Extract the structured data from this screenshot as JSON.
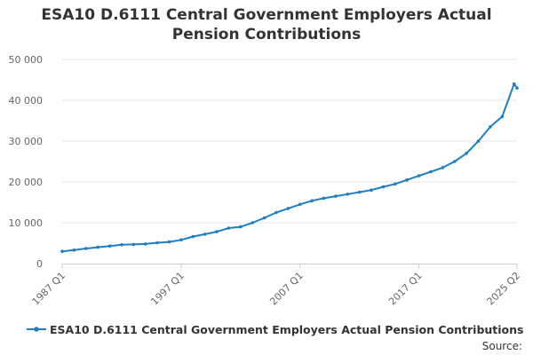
{
  "chart_data": {
    "type": "line",
    "title_lines": [
      "ESA10 D.6111 Central Government Employers Actual",
      "Pension Contributions"
    ],
    "xlabel": "",
    "ylabel": "",
    "x_ticks": [
      "1987 Q1",
      "1997 Q1",
      "2007 Q1",
      "2017 Q1",
      "2025 Q2"
    ],
    "y_ticks": [
      "0",
      "10 000",
      "20 000",
      "30 000",
      "40 000",
      "50 000"
    ],
    "ylim": [
      0,
      50000
    ],
    "xlim": [
      "1987 Q1",
      "2025 Q2"
    ],
    "grid": true,
    "legend_position": "bottom",
    "series": [
      {
        "name": "ESA10 D.6111 Central Government Employers Actual Pension Contributions",
        "color": "#1f7fc1",
        "points": [
          [
            "1987 Q1",
            3000
          ],
          [
            "1988 Q1",
            3300
          ],
          [
            "1989 Q1",
            3700
          ],
          [
            "1990 Q1",
            4000
          ],
          [
            "1991 Q1",
            4300
          ],
          [
            "1992 Q1",
            4600
          ],
          [
            "1993 Q1",
            4700
          ],
          [
            "1994 Q1",
            4800
          ],
          [
            "1995 Q1",
            5100
          ],
          [
            "1996 Q1",
            5300
          ],
          [
            "1997 Q1",
            5800
          ],
          [
            "1998 Q1",
            6600
          ],
          [
            "1999 Q1",
            7200
          ],
          [
            "2000 Q1",
            7800
          ],
          [
            "2001 Q1",
            8700
          ],
          [
            "2002 Q1",
            9000
          ],
          [
            "2003 Q1",
            10000
          ],
          [
            "2004 Q1",
            11200
          ],
          [
            "2005 Q1",
            12500
          ],
          [
            "2006 Q1",
            13500
          ],
          [
            "2007 Q1",
            14500
          ],
          [
            "2008 Q1",
            15400
          ],
          [
            "2009 Q1",
            16000
          ],
          [
            "2010 Q1",
            16500
          ],
          [
            "2011 Q1",
            17000
          ],
          [
            "2012 Q1",
            17500
          ],
          [
            "2013 Q1",
            18000
          ],
          [
            "2014 Q1",
            18800
          ],
          [
            "2015 Q1",
            19500
          ],
          [
            "2016 Q1",
            20500
          ],
          [
            "2017 Q1",
            21500
          ],
          [
            "2018 Q1",
            22500
          ],
          [
            "2019 Q1",
            23500
          ],
          [
            "2020 Q1",
            25000
          ],
          [
            "2021 Q1",
            27000
          ],
          [
            "2022 Q1",
            30000
          ],
          [
            "2023 Q1",
            33500
          ],
          [
            "2024 Q1",
            36000
          ],
          [
            "2025 Q1",
            44000
          ],
          [
            "2025 Q2",
            43000
          ]
        ]
      }
    ]
  },
  "source_label": "Source:"
}
